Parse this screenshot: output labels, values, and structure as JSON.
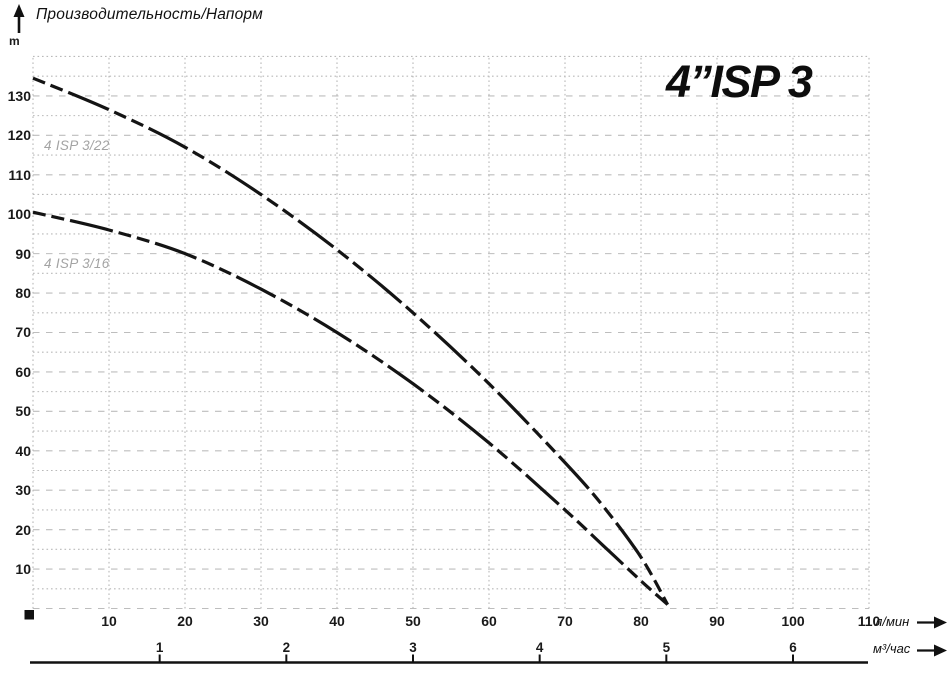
{
  "header": {
    "axis_caption": "Производительность/Напорм",
    "y_unit": "m"
  },
  "title": "4”ISP 3",
  "curves": [
    {
      "label": "4 ISP 3/22"
    },
    {
      "label": "4 ISP 3/16"
    }
  ],
  "x_axis": {
    "primary_unit": "л/мин",
    "secondary_unit": "м³/час"
  },
  "chart_data": {
    "type": "line",
    "title": "4”ISP 3",
    "axis_caption": "Производительность/Напорм",
    "ylabel": "m",
    "xlabel_primary": "л/мин",
    "xlabel_secondary": "м³/час",
    "xlim": [
      0,
      110
    ],
    "ylim": [
      0,
      140
    ],
    "grid": true,
    "x_ticks_lmin": [
      10,
      20,
      30,
      40,
      50,
      60,
      70,
      80,
      90,
      100,
      110
    ],
    "x_ticks_m3h": [
      1,
      2,
      3,
      4,
      5,
      6
    ],
    "y_ticks": [
      10,
      20,
      30,
      40,
      50,
      60,
      70,
      80,
      90,
      100,
      110,
      120,
      130
    ],
    "series": [
      {
        "name": "4 ISP 3/22",
        "x": [
          0,
          10,
          20,
          30,
          40,
          50,
          60,
          70,
          75,
          80,
          83.5
        ],
        "y": [
          134.5,
          126.5,
          117,
          105,
          91,
          75,
          57,
          37,
          26,
          13,
          1
        ]
      },
      {
        "name": "4 ISP 3/16",
        "x": [
          0,
          10,
          20,
          30,
          40,
          50,
          60,
          70,
          75,
          80,
          83.5
        ],
        "y": [
          100.5,
          96,
          90,
          81,
          70,
          57,
          42,
          25,
          16,
          7,
          1
        ]
      }
    ],
    "curve_color": "#141414",
    "grid_color": "#bcbcbc",
    "legend_position": "labels beside curves, upper left area"
  }
}
